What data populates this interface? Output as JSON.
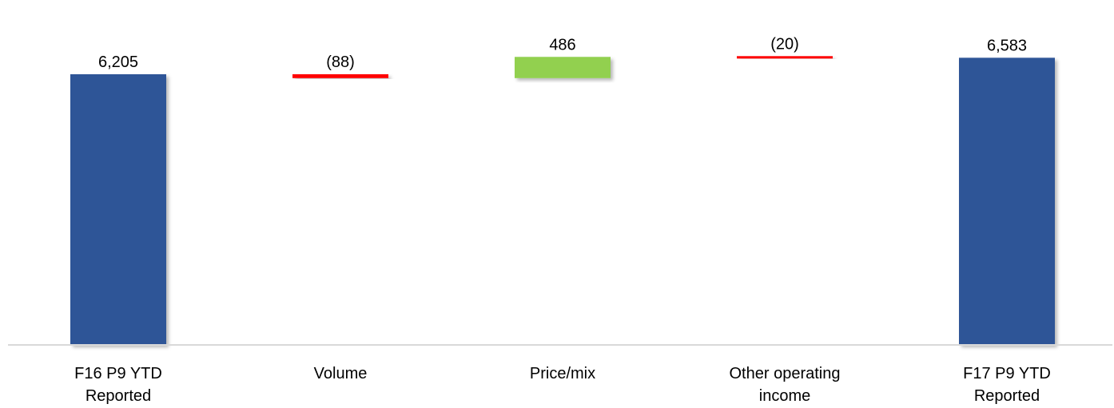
{
  "chart_data": {
    "type": "waterfall",
    "title": "",
    "xlabel": "",
    "ylabel": "",
    "grid": false,
    "legend": "none",
    "categories": [
      [
        "F16 P9 YTD",
        "Reported"
      ],
      [
        "Volume"
      ],
      [
        "Price/mix"
      ],
      [
        "Other operating",
        "income"
      ],
      [
        "F17 P9 YTD",
        "Reported"
      ]
    ],
    "steps": [
      {
        "kind": "total",
        "value": 6205,
        "label": "6,205"
      },
      {
        "kind": "delta",
        "value": -88,
        "label": "(88)"
      },
      {
        "kind": "delta",
        "value": 486,
        "label": "486"
      },
      {
        "kind": "delta",
        "value": -20,
        "label": "(20)"
      },
      {
        "kind": "total",
        "value": 6583,
        "label": "6,583"
      }
    ],
    "colors": {
      "total": "#2F5597",
      "increase": "#92D050",
      "decrease": "#FF0000",
      "axis": "#D9D9D9"
    }
  }
}
